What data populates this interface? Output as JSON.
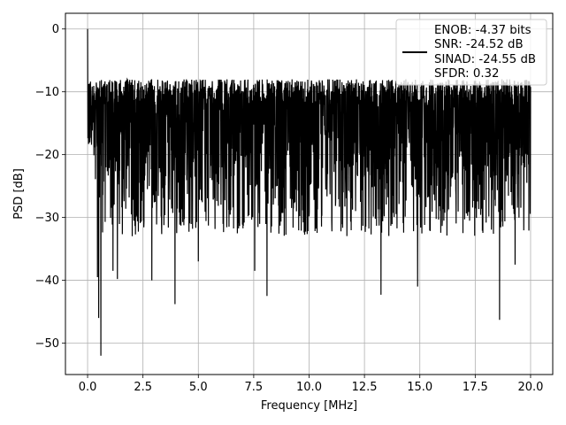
{
  "chart_data": {
    "type": "line",
    "title": "",
    "xlabel": "Frequency [MHz]",
    "ylabel": "PSD [dB]",
    "xlim": [
      -1.0,
      21.0
    ],
    "ylim": [
      -55,
      2.5
    ],
    "xticks": [
      0.0,
      2.5,
      5.0,
      7.5,
      10.0,
      12.5,
      15.0,
      17.5,
      20.0
    ],
    "xtick_labels": [
      "0.0",
      "2.5",
      "5.0",
      "7.5",
      "10.0",
      "12.5",
      "15.0",
      "17.5",
      "20.0"
    ],
    "yticks": [
      0,
      -10,
      -20,
      -30,
      -40,
      -50
    ],
    "ytick_labels": [
      "0",
      "−10",
      "−20",
      "−30",
      "−40",
      "−50"
    ],
    "grid": true,
    "legend_placement": "upper-right",
    "series": [
      {
        "color": "#000000",
        "x_range": [
          0.0,
          20.0
        ],
        "peak": {
          "x": 0.0,
          "y": 0.0
        },
        "floor_band": [
          -24,
          -8
        ],
        "deep_nulls": [
          {
            "x": 0.45,
            "y": -39.5
          },
          {
            "x": 0.5,
            "y": -46.0
          },
          {
            "x": 0.6,
            "y": -52.0
          },
          {
            "x": 1.15,
            "y": -38.5
          },
          {
            "x": 1.35,
            "y": -39.8
          },
          {
            "x": 2.9,
            "y": -40.0
          },
          {
            "x": 3.95,
            "y": -43.8
          },
          {
            "x": 5.0,
            "y": -37.0
          },
          {
            "x": 7.55,
            "y": -38.5
          },
          {
            "x": 8.1,
            "y": -42.5
          },
          {
            "x": 13.25,
            "y": -42.3
          },
          {
            "x": 14.9,
            "y": -41.0
          },
          {
            "x": 18.6,
            "y": -46.3
          },
          {
            "x": 19.3,
            "y": -37.5
          }
        ]
      }
    ],
    "legend": {
      "entries": [
        "ENOB: -4.37 bits",
        "SNR: -24.52 dB",
        "SINAD: -24.55 dB",
        "SFDR: 0.32"
      ]
    }
  }
}
